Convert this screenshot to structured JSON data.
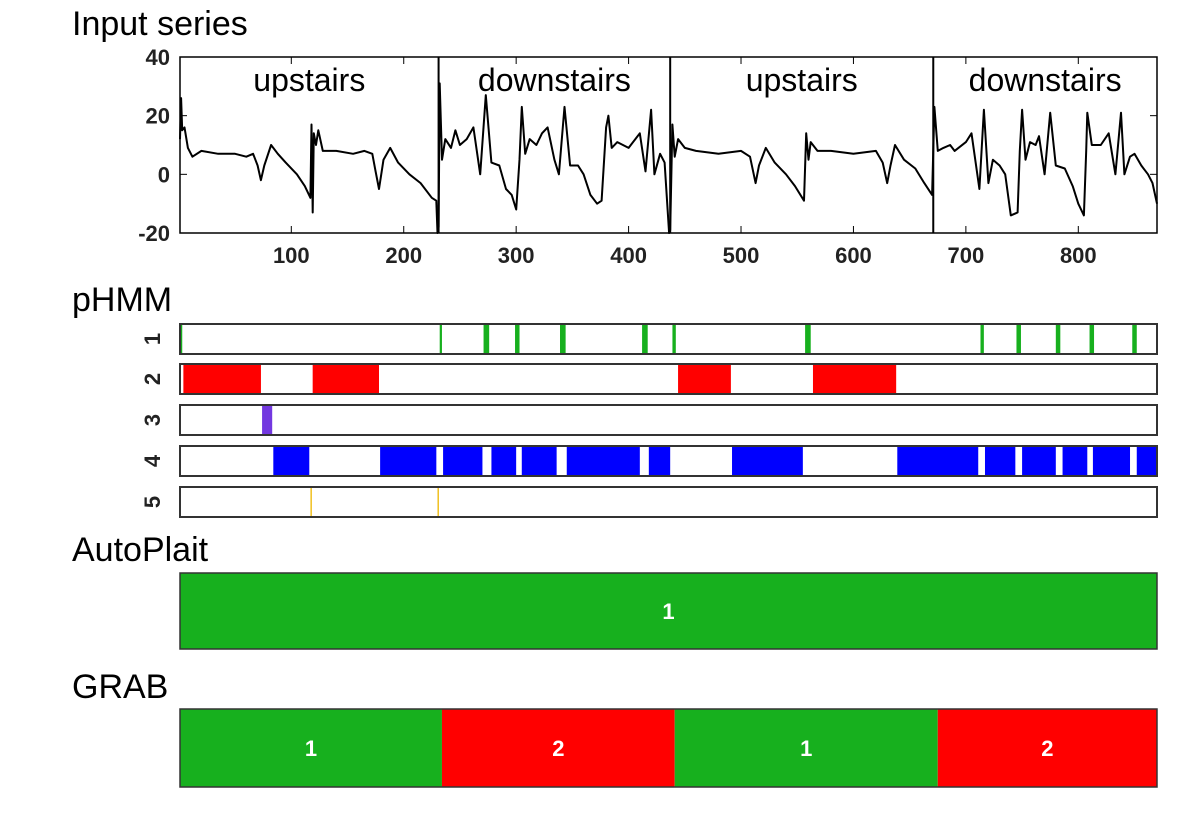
{
  "chart_data": [
    {
      "type": "line",
      "title": "Input series",
      "xlim": [
        1,
        870
      ],
      "ylim": [
        -20,
        40
      ],
      "yticks": [
        "40",
        "20",
        "0",
        "-20"
      ],
      "ytick_values": [
        40,
        20,
        0,
        -20
      ],
      "xticks": [
        "100",
        "200",
        "300",
        "400",
        "500",
        "600",
        "700",
        "800"
      ],
      "xtick_values": [
        100,
        200,
        300,
        400,
        500,
        600,
        700,
        800
      ],
      "segments": [
        {
          "label": "upstairs",
          "start": 1,
          "end": 231
        },
        {
          "label": "downstairs",
          "start": 231,
          "end": 437
        },
        {
          "label": "upstairs",
          "start": 437,
          "end": 671
        },
        {
          "label": "downstairs",
          "start": 671,
          "end": 870
        }
      ],
      "series": [
        [
          1,
          12
        ],
        [
          2,
          26
        ],
        [
          3,
          15
        ],
        [
          5,
          16
        ],
        [
          8,
          9
        ],
        [
          12,
          6
        ],
        [
          20,
          8
        ],
        [
          35,
          7
        ],
        [
          50,
          7
        ],
        [
          60,
          6
        ],
        [
          66,
          7
        ],
        [
          70,
          3
        ],
        [
          73,
          -2
        ],
        [
          76,
          3
        ],
        [
          82,
          10
        ],
        [
          88,
          7
        ],
        [
          95,
          4
        ],
        [
          105,
          0
        ],
        [
          112,
          -4
        ],
        [
          117,
          -8
        ],
        [
          118,
          17
        ],
        [
          119,
          -13
        ],
        [
          120,
          14
        ],
        [
          122,
          10
        ],
        [
          124,
          15
        ],
        [
          128,
          8
        ],
        [
          140,
          8
        ],
        [
          155,
          7
        ],
        [
          165,
          8
        ],
        [
          172,
          7
        ],
        [
          175,
          1
        ],
        [
          178,
          -5
        ],
        [
          182,
          5
        ],
        [
          188,
          9
        ],
        [
          195,
          4
        ],
        [
          205,
          0
        ],
        [
          215,
          -3
        ],
        [
          225,
          -8
        ],
        [
          229,
          -9
        ],
        [
          230,
          -20
        ],
        [
          231,
          -18
        ],
        [
          232,
          31
        ],
        [
          234,
          5
        ],
        [
          237,
          12
        ],
        [
          242,
          9
        ],
        [
          246,
          15
        ],
        [
          250,
          10
        ],
        [
          256,
          12
        ],
        [
          262,
          16
        ],
        [
          268,
          0
        ],
        [
          273,
          27
        ],
        [
          278,
          4
        ],
        [
          285,
          3
        ],
        [
          291,
          -5
        ],
        [
          296,
          -7
        ],
        [
          300,
          -12
        ],
        [
          303,
          5
        ],
        [
          305,
          23
        ],
        [
          308,
          7
        ],
        [
          312,
          12
        ],
        [
          318,
          10
        ],
        [
          323,
          14
        ],
        [
          328,
          16
        ],
        [
          334,
          5
        ],
        [
          338,
          0
        ],
        [
          343,
          23
        ],
        [
          348,
          3
        ],
        [
          355,
          3
        ],
        [
          360,
          0
        ],
        [
          366,
          -7
        ],
        [
          372,
          -10
        ],
        [
          376,
          -9
        ],
        [
          380,
          16
        ],
        [
          382,
          20
        ],
        [
          385,
          9
        ],
        [
          390,
          11
        ],
        [
          400,
          9
        ],
        [
          410,
          14
        ],
        [
          415,
          1
        ],
        [
          420,
          22
        ],
        [
          423,
          0
        ],
        [
          428,
          7
        ],
        [
          432,
          4
        ],
        [
          436,
          -20
        ],
        [
          437,
          -19
        ],
        [
          439,
          17
        ],
        [
          441,
          6
        ],
        [
          444,
          12
        ],
        [
          450,
          9
        ],
        [
          460,
          8
        ],
        [
          480,
          7
        ],
        [
          500,
          8
        ],
        [
          508,
          6
        ],
        [
          513,
          -3
        ],
        [
          516,
          3
        ],
        [
          522,
          9
        ],
        [
          530,
          4
        ],
        [
          540,
          0
        ],
        [
          548,
          -4
        ],
        [
          556,
          -9
        ],
        [
          558,
          14
        ],
        [
          560,
          5
        ],
        [
          562,
          11
        ],
        [
          568,
          8
        ],
        [
          580,
          8
        ],
        [
          600,
          7
        ],
        [
          620,
          8
        ],
        [
          626,
          4
        ],
        [
          630,
          -3
        ],
        [
          633,
          3
        ],
        [
          637,
          10
        ],
        [
          645,
          5
        ],
        [
          655,
          2
        ],
        [
          663,
          -3
        ],
        [
          670,
          -7
        ],
        [
          672,
          23
        ],
        [
          675,
          8
        ],
        [
          680,
          9
        ],
        [
          686,
          10
        ],
        [
          690,
          8
        ],
        [
          700,
          11
        ],
        [
          705,
          14
        ],
        [
          712,
          -5
        ],
        [
          716,
          22
        ],
        [
          720,
          -3
        ],
        [
          724,
          5
        ],
        [
          730,
          3
        ],
        [
          735,
          0
        ],
        [
          740,
          -14
        ],
        [
          746,
          -13
        ],
        [
          748,
          8
        ],
        [
          750,
          22
        ],
        [
          753,
          5
        ],
        [
          757,
          11
        ],
        [
          762,
          10
        ],
        [
          765,
          13
        ],
        [
          770,
          0
        ],
        [
          775,
          21
        ],
        [
          780,
          3
        ],
        [
          788,
          2
        ],
        [
          795,
          -4
        ],
        [
          800,
          -10
        ],
        [
          805,
          -14
        ],
        [
          807,
          8
        ],
        [
          808,
          21
        ],
        [
          812,
          10
        ],
        [
          820,
          10
        ],
        [
          827,
          14
        ],
        [
          833,
          0
        ],
        [
          838,
          21
        ],
        [
          841,
          0
        ],
        [
          846,
          6
        ],
        [
          850,
          7
        ],
        [
          856,
          3
        ],
        [
          862,
          0
        ],
        [
          866,
          -3
        ],
        [
          870,
          -10
        ]
      ]
    },
    {
      "type": "segmentation",
      "title": "pHMM",
      "xlim": [
        1,
        870
      ],
      "rows": [
        {
          "label": "1",
          "color": "#17b01e",
          "intervals": [
            [
              1,
              3
            ],
            [
              232,
              234
            ],
            [
              271,
              276
            ],
            [
              299,
              303
            ],
            [
              339,
              344
            ],
            [
              412,
              417
            ],
            [
              439,
              442
            ],
            [
              557,
              562
            ],
            [
              713,
              716
            ],
            [
              745,
              749
            ],
            [
              780,
              784
            ],
            [
              810,
              814
            ],
            [
              848,
              852
            ]
          ]
        },
        {
          "label": "2",
          "color": "#ff0000",
          "intervals": [
            [
              4,
              73
            ],
            [
              119,
              178
            ],
            [
              444,
              491
            ],
            [
              564,
              638
            ]
          ]
        },
        {
          "label": "3",
          "color": "#7338e0",
          "intervals": [
            [
              74,
              83
            ]
          ]
        },
        {
          "label": "4",
          "color": "#0000ff",
          "intervals": [
            [
              84,
              116
            ],
            [
              179,
              229
            ],
            [
              235,
              270
            ],
            [
              278,
              300
            ],
            [
              305,
              336
            ],
            [
              345,
              410
            ],
            [
              418,
              437
            ],
            [
              492,
              555
            ],
            [
              639,
              711
            ],
            [
              717,
              744
            ],
            [
              750,
              780
            ],
            [
              786,
              808
            ],
            [
              813,
              846
            ],
            [
              852,
              870
            ]
          ]
        },
        {
          "label": "5",
          "color": "#f0c020",
          "intervals": [
            [
              117,
              118
            ],
            [
              230,
              231
            ]
          ]
        }
      ]
    },
    {
      "type": "segmentation",
      "title": "AutoPlait",
      "xlim": [
        1,
        870
      ],
      "segments": [
        {
          "label": "1",
          "start": 1,
          "end": 870,
          "color": "#17b01e"
        }
      ]
    },
    {
      "type": "segmentation",
      "title": "GRAB",
      "xlim": [
        1,
        870
      ],
      "segments": [
        {
          "label": "1",
          "start": 1,
          "end": 234,
          "color": "#17b01e"
        },
        {
          "label": "2",
          "start": 234,
          "end": 441,
          "color": "#ff0000"
        },
        {
          "label": "1",
          "start": 441,
          "end": 675,
          "color": "#17b01e"
        },
        {
          "label": "2",
          "start": 675,
          "end": 870,
          "color": "#ff0000"
        }
      ]
    }
  ]
}
